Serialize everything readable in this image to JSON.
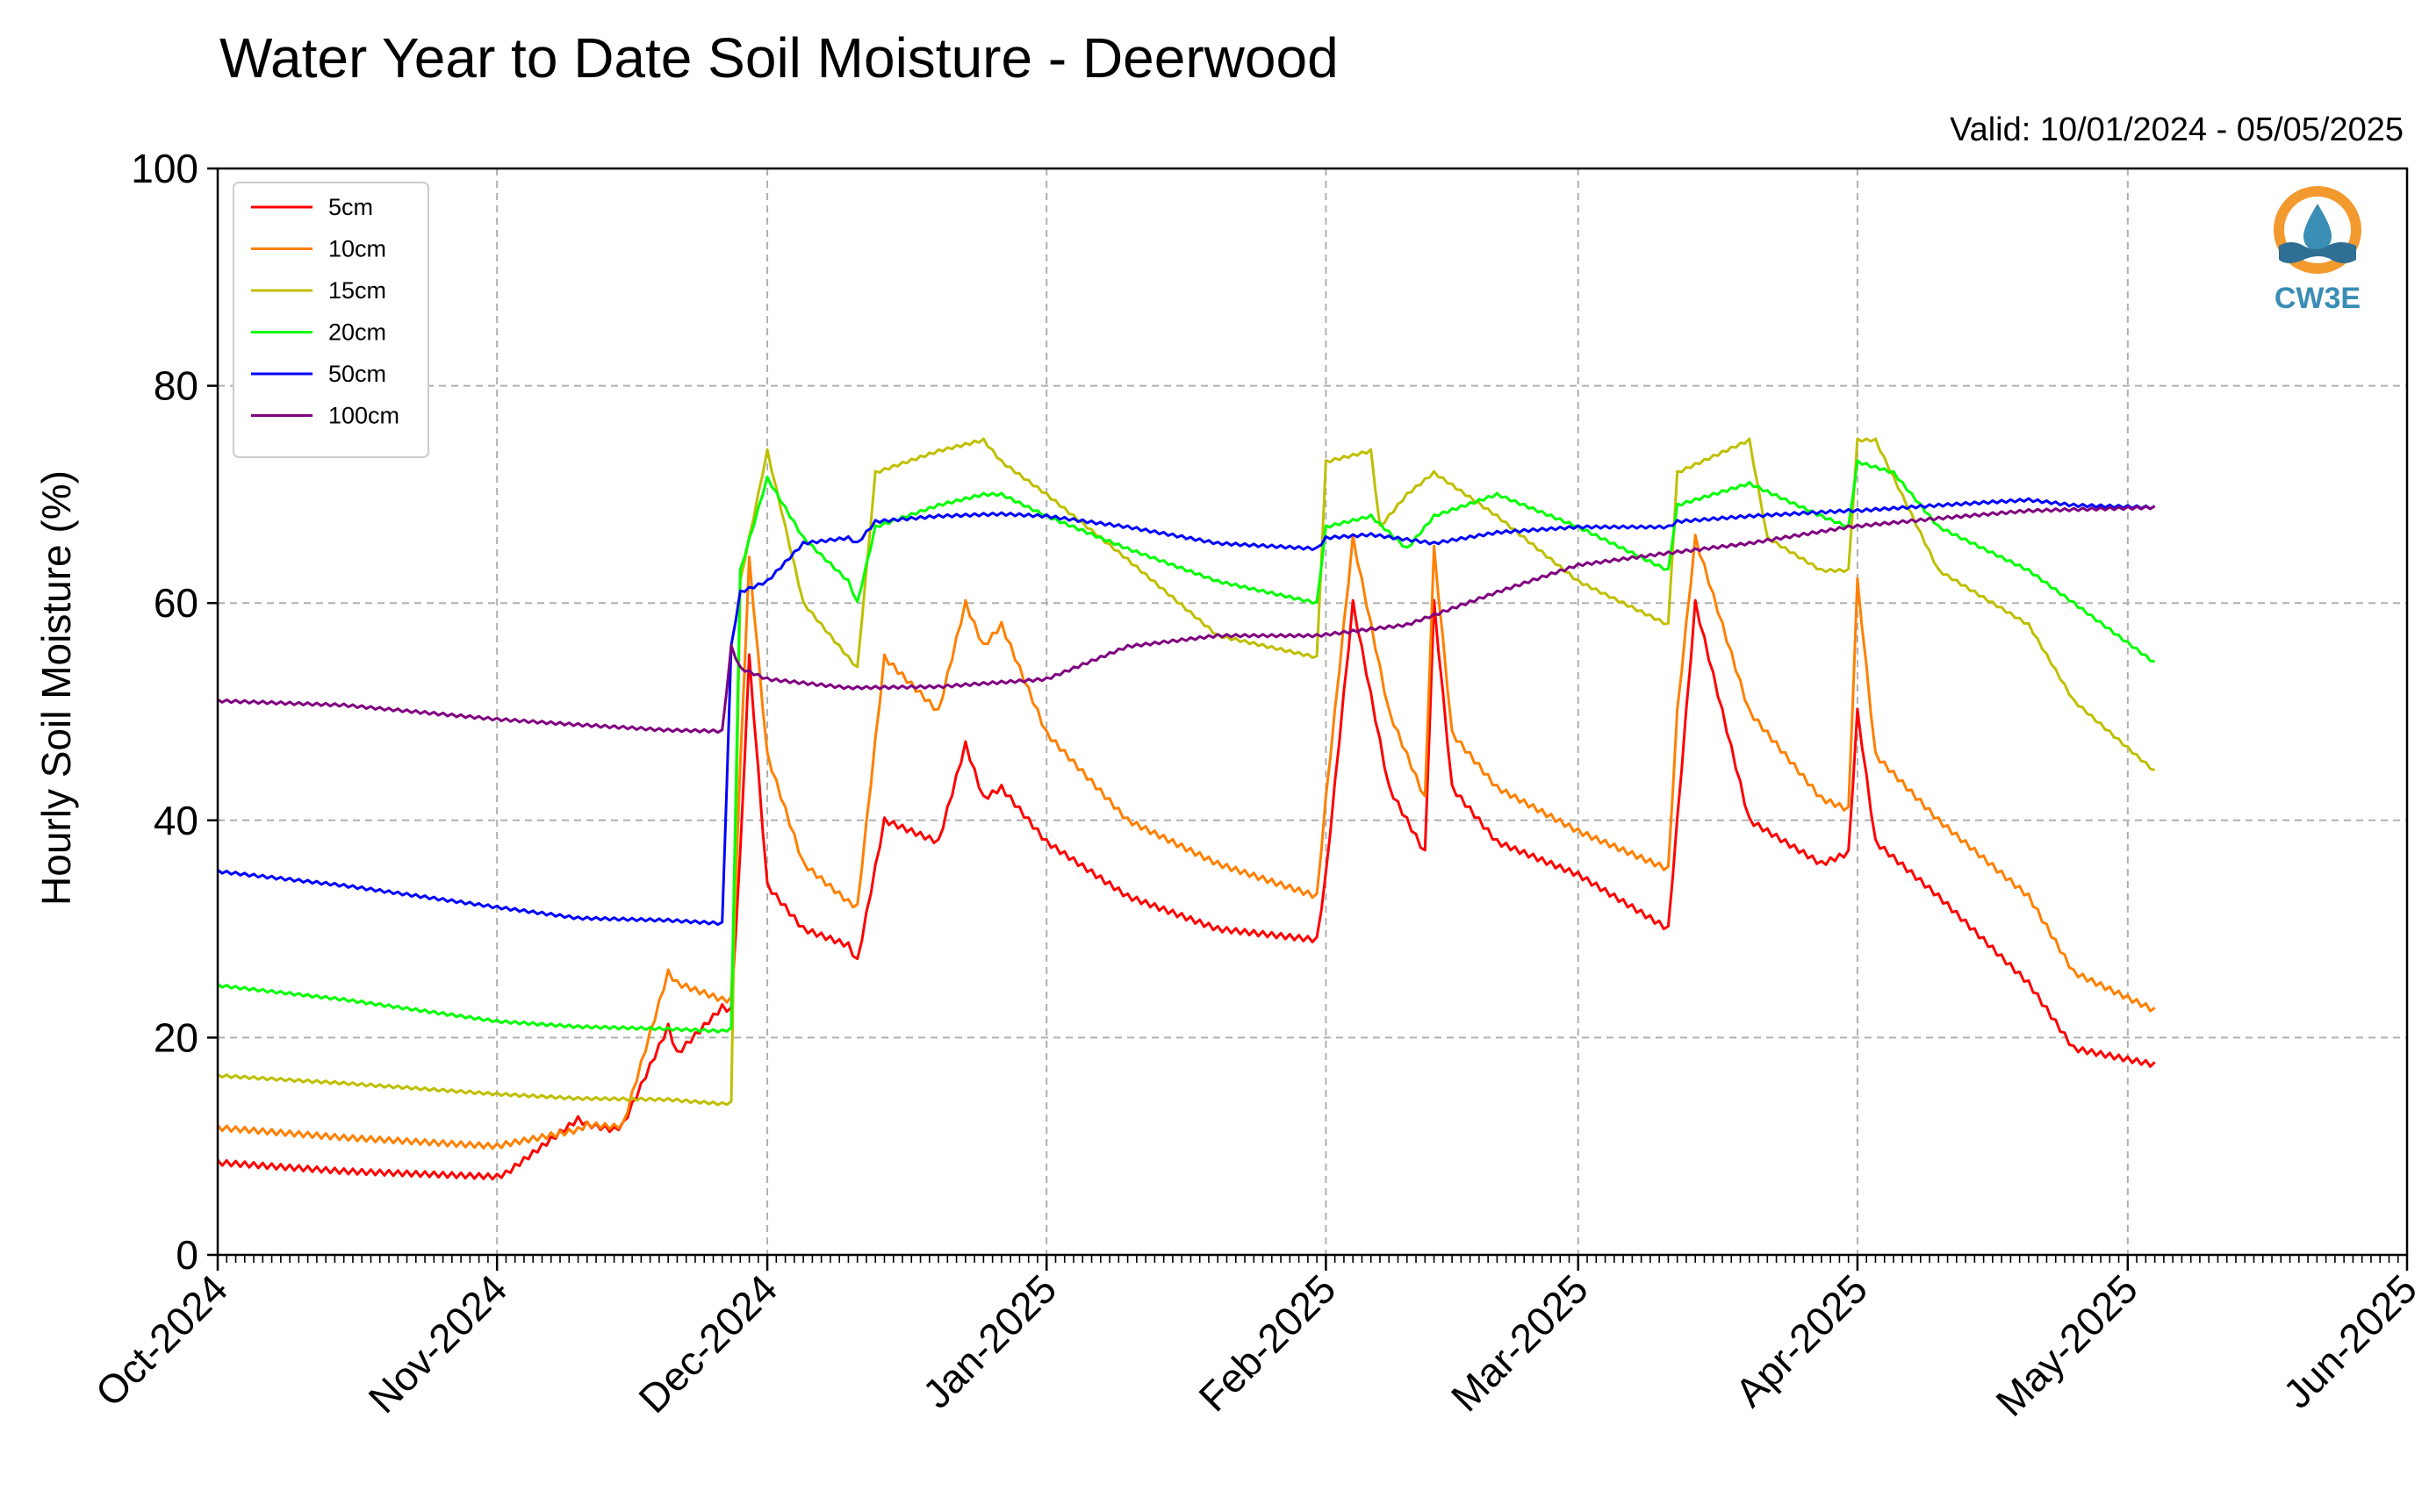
{
  "chart_data": {
    "type": "line",
    "title": "Water Year to Date Soil Moisture - Deerwood",
    "valid_label": "Valid: 10/01/2024 - 05/05/2025",
    "ylabel": "Hourly Soil Moisture (%)",
    "xlabel": "",
    "ylim": [
      0,
      100
    ],
    "yticks": [
      0,
      20,
      40,
      60,
      80,
      100
    ],
    "xlim": [
      "2024-10-01",
      "2025-06-01"
    ],
    "xticks": [
      {
        "date": "2024-10-01",
        "label": "Oct-2024"
      },
      {
        "date": "2024-11-01",
        "label": "Nov-2024"
      },
      {
        "date": "2024-12-01",
        "label": "Dec-2024"
      },
      {
        "date": "2025-01-01",
        "label": "Jan-2025"
      },
      {
        "date": "2025-02-01",
        "label": "Feb-2025"
      },
      {
        "date": "2025-03-01",
        "label": "Mar-2025"
      },
      {
        "date": "2025-04-01",
        "label": "Apr-2025"
      },
      {
        "date": "2025-05-01",
        "label": "May-2025"
      },
      {
        "date": "2025-06-01",
        "label": "Jun-2025"
      }
    ],
    "grid": true,
    "legend_position": "top-left",
    "logo_text": "CW3E",
    "series": [
      {
        "name": "5cm",
        "color": "#ff0000",
        "x": [
          "2024-10-01",
          "2024-10-15",
          "2024-11-01",
          "2024-11-02",
          "2024-11-10",
          "2024-11-11",
          "2024-11-14",
          "2024-11-15",
          "2024-11-20",
          "2024-11-21",
          "2024-11-26",
          "2024-11-27",
          "2024-11-28",
          "2024-11-29",
          "2024-12-01",
          "2024-12-05",
          "2024-12-10",
          "2024-12-11",
          "2024-12-14",
          "2024-12-20",
          "2024-12-23",
          "2024-12-25",
          "2024-12-27",
          "2025-01-01",
          "2025-01-10",
          "2025-01-20",
          "2025-01-31",
          "2025-02-01",
          "2025-02-04",
          "2025-02-08",
          "2025-02-12",
          "2025-02-13",
          "2025-02-15",
          "2025-02-20",
          "2025-03-01",
          "2025-03-11",
          "2025-03-12",
          "2025-03-14",
          "2025-03-20",
          "2025-03-28",
          "2025-03-31",
          "2025-04-01",
          "2025-04-03",
          "2025-04-10",
          "2025-04-20",
          "2025-04-25",
          "2025-05-04"
        ],
        "y": [
          8.5,
          7.7,
          7.2,
          7.5,
          12.5,
          12.0,
          11.5,
          12.0,
          21.0,
          18.5,
          22.8,
          22.5,
          37,
          55,
          34,
          30,
          28.5,
          27,
          40,
          38,
          47,
          42,
          43,
          38,
          33,
          30,
          29,
          35,
          60,
          43,
          37,
          60,
          43,
          38,
          35,
          30,
          40,
          60,
          40,
          36,
          37,
          50,
          38,
          33,
          25,
          19,
          17.5
        ]
      },
      {
        "name": "10cm",
        "color": "#ff8000",
        "x": [
          "2024-10-01",
          "2024-10-15",
          "2024-11-01",
          "2024-11-02",
          "2024-11-10",
          "2024-11-11",
          "2024-11-14",
          "2024-11-15",
          "2024-11-20",
          "2024-11-21",
          "2024-11-26",
          "2024-11-27",
          "2024-11-28",
          "2024-11-29",
          "2024-12-01",
          "2024-12-05",
          "2024-12-10",
          "2024-12-11",
          "2024-12-14",
          "2024-12-20",
          "2024-12-23",
          "2024-12-25",
          "2024-12-27",
          "2025-01-01",
          "2025-01-10",
          "2025-01-20",
          "2025-01-31",
          "2025-02-01",
          "2025-02-04",
          "2025-02-08",
          "2025-02-12",
          "2025-02-13",
          "2025-02-15",
          "2025-02-20",
          "2025-03-01",
          "2025-03-11",
          "2025-03-12",
          "2025-03-14",
          "2025-03-20",
          "2025-03-28",
          "2025-03-31",
          "2025-04-01",
          "2025-04-03",
          "2025-04-10",
          "2025-04-20",
          "2025-04-25",
          "2025-05-04"
        ],
        "y": [
          11.7,
          10.8,
          10.0,
          10.2,
          11.5,
          12.0,
          11.8,
          12.0,
          26.0,
          25.0,
          23.5,
          23.5,
          45,
          64,
          46,
          36,
          32.5,
          32,
          55,
          50,
          60,
          56,
          58,
          48,
          40,
          36,
          33,
          42,
          66,
          50,
          42,
          65,
          48,
          43,
          39,
          35.5,
          50,
          66,
          50,
          42,
          41,
          62,
          46,
          40,
          33,
          26,
          22.5
        ]
      },
      {
        "name": "15cm",
        "color": "#bfbf00",
        "x": [
          "2024-10-01",
          "2024-10-15",
          "2024-11-01",
          "2024-11-10",
          "2024-11-20",
          "2024-11-26",
          "2024-11-27",
          "2024-11-28",
          "2024-12-01",
          "2024-12-05",
          "2024-12-10",
          "2024-12-11",
          "2024-12-13",
          "2024-12-20",
          "2024-12-25",
          "2024-12-27",
          "2025-01-01",
          "2025-01-10",
          "2025-01-20",
          "2025-01-31",
          "2025-02-01",
          "2025-02-06",
          "2025-02-07",
          "2025-02-10",
          "2025-02-13",
          "2025-02-20",
          "2025-03-01",
          "2025-03-11",
          "2025-03-12",
          "2025-03-20",
          "2025-03-22",
          "2025-03-28",
          "2025-03-31",
          "2025-04-01",
          "2025-04-03",
          "2025-04-10",
          "2025-04-20",
          "2025-04-25",
          "2025-05-04"
        ],
        "y": [
          16.5,
          15.8,
          14.8,
          14.4,
          14.3,
          13.9,
          14.0,
          62,
          74,
          60,
          55,
          54,
          72,
          74,
          75,
          73,
          70,
          64,
          57,
          55,
          73,
          74,
          67,
          70,
          72,
          68,
          62,
          58,
          72,
          75,
          66,
          63,
          63,
          75,
          75,
          63,
          58,
          51,
          44.5
        ]
      },
      {
        "name": "20cm",
        "color": "#00ff00",
        "x": [
          "2024-10-01",
          "2024-10-15",
          "2024-11-01",
          "2024-11-10",
          "2024-11-20",
          "2024-11-26",
          "2024-11-27",
          "2024-11-28",
          "2024-12-01",
          "2024-12-05",
          "2024-12-10",
          "2024-12-11",
          "2024-12-13",
          "2024-12-20",
          "2024-12-25",
          "2024-12-27",
          "2025-01-01",
          "2025-01-10",
          "2025-01-20",
          "2025-01-31",
          "2025-02-01",
          "2025-02-06",
          "2025-02-10",
          "2025-02-13",
          "2025-02-20",
          "2025-03-01",
          "2025-03-11",
          "2025-03-12",
          "2025-03-20",
          "2025-03-28",
          "2025-03-31",
          "2025-04-01",
          "2025-04-05",
          "2025-04-10",
          "2025-04-20",
          "2025-04-25",
          "2025-05-04"
        ],
        "y": [
          24.8,
          23.5,
          21.5,
          21.0,
          20.8,
          20.6,
          20.8,
          63,
          71.5,
          66,
          62,
          60,
          67,
          69,
          70,
          70,
          68,
          65,
          62,
          60,
          67,
          68,
          65,
          68,
          70,
          67,
          63,
          69,
          71,
          68,
          67,
          73,
          72,
          67,
          63,
          60,
          54.5
        ]
      },
      {
        "name": "50cm",
        "color": "#0000ff",
        "x": [
          "2024-10-01",
          "2024-10-15",
          "2024-11-01",
          "2024-11-10",
          "2024-11-20",
          "2024-11-26",
          "2024-11-27",
          "2024-11-28",
          "2024-12-01",
          "2024-12-05",
          "2024-12-10",
          "2024-12-11",
          "2024-12-13",
          "2024-12-20",
          "2024-12-27",
          "2025-01-01",
          "2025-01-10",
          "2025-01-20",
          "2025-01-31",
          "2025-02-01",
          "2025-02-06",
          "2025-02-13",
          "2025-02-20",
          "2025-03-01",
          "2025-03-11",
          "2025-03-12",
          "2025-03-20",
          "2025-03-31",
          "2025-04-01",
          "2025-04-10",
          "2025-04-20",
          "2025-04-25",
          "2025-05-04"
        ],
        "y": [
          35.3,
          34.0,
          32.0,
          31.0,
          30.8,
          30.5,
          56,
          61,
          62,
          65.5,
          66,
          65.5,
          67.5,
          68,
          68.2,
          68,
          67,
          65.5,
          65,
          66,
          66.3,
          65.5,
          66.5,
          67,
          67,
          67.5,
          68,
          68.5,
          68.5,
          69,
          69.5,
          69,
          68.8
        ]
      },
      {
        "name": "100cm",
        "color": "#800080",
        "x": [
          "2024-10-01",
          "2024-10-15",
          "2024-11-01",
          "2024-11-10",
          "2024-11-20",
          "2024-11-26",
          "2024-11-27",
          "2024-11-28",
          "2024-12-01",
          "2024-12-10",
          "2024-12-20",
          "2025-01-01",
          "2025-01-10",
          "2025-01-20",
          "2025-01-31",
          "2025-02-10",
          "2025-02-20",
          "2025-03-01",
          "2025-03-10",
          "2025-03-20",
          "2025-03-31",
          "2025-04-10",
          "2025-04-20",
          "2025-05-04"
        ],
        "y": [
          51.0,
          50.6,
          49.3,
          48.8,
          48.3,
          48.2,
          56,
          54,
          53,
          52.2,
          52.3,
          53,
          56,
          57,
          57,
          58,
          61,
          63.5,
          64.5,
          65.5,
          67,
          67.8,
          68.5,
          68.8
        ]
      }
    ]
  }
}
